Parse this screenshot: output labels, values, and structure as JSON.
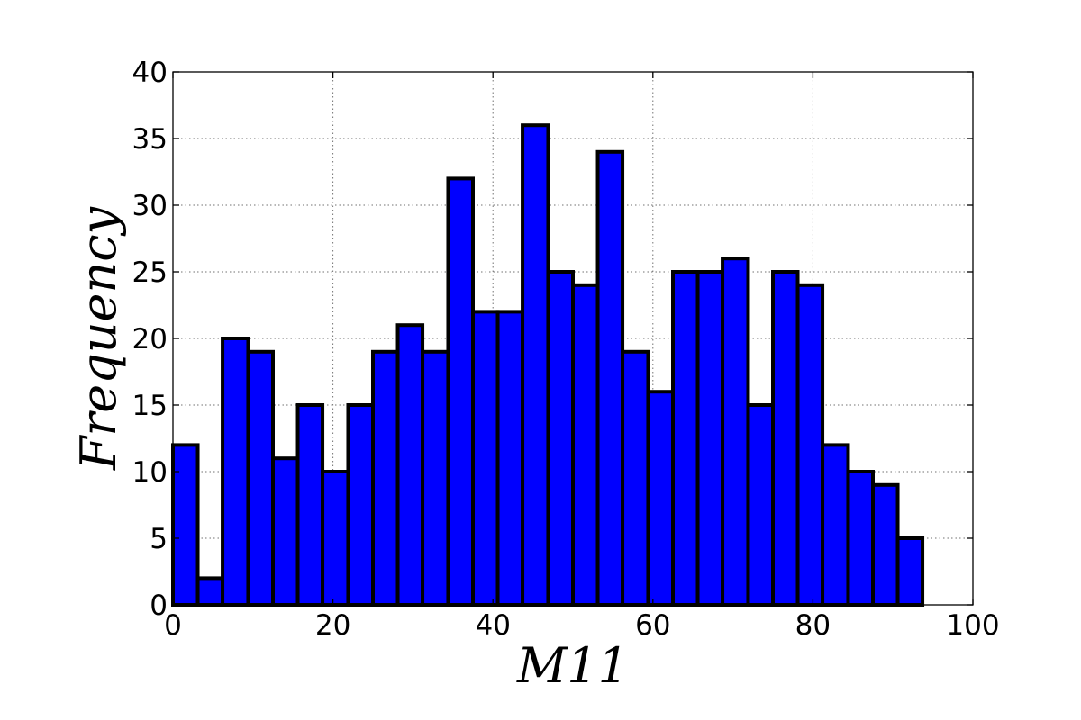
{
  "chart_data": {
    "type": "bar",
    "subtype": "histogram",
    "xlabel": "M11",
    "ylabel": "Frequency",
    "xlim": [
      0,
      100
    ],
    "ylim": [
      0,
      40
    ],
    "x_ticks": [
      0,
      20,
      40,
      60,
      80,
      100
    ],
    "y_ticks": [
      0,
      5,
      10,
      15,
      20,
      25,
      30,
      35,
      40
    ],
    "grid": true,
    "bar_color": "#0000ff",
    "edge_color": "#000000",
    "bins": [
      {
        "start": 0.0,
        "end": 3.1,
        "count": 12
      },
      {
        "start": 3.1,
        "end": 6.2,
        "count": 2
      },
      {
        "start": 6.2,
        "end": 9.4,
        "count": 20
      },
      {
        "start": 9.4,
        "end": 12.5,
        "count": 19
      },
      {
        "start": 12.5,
        "end": 15.6,
        "count": 11
      },
      {
        "start": 15.6,
        "end": 18.7,
        "count": 15
      },
      {
        "start": 18.7,
        "end": 21.9,
        "count": 10
      },
      {
        "start": 21.9,
        "end": 25.0,
        "count": 15
      },
      {
        "start": 25.0,
        "end": 28.1,
        "count": 19
      },
      {
        "start": 28.1,
        "end": 31.2,
        "count": 21
      },
      {
        "start": 31.2,
        "end": 34.4,
        "count": 19
      },
      {
        "start": 34.4,
        "end": 37.5,
        "count": 32
      },
      {
        "start": 37.5,
        "end": 40.6,
        "count": 22
      },
      {
        "start": 40.6,
        "end": 43.7,
        "count": 22
      },
      {
        "start": 43.7,
        "end": 46.9,
        "count": 36
      },
      {
        "start": 46.9,
        "end": 50.0,
        "count": 25
      },
      {
        "start": 50.0,
        "end": 53.1,
        "count": 24
      },
      {
        "start": 53.1,
        "end": 56.2,
        "count": 34
      },
      {
        "start": 56.2,
        "end": 59.4,
        "count": 19
      },
      {
        "start": 59.4,
        "end": 62.5,
        "count": 16
      },
      {
        "start": 62.5,
        "end": 65.6,
        "count": 25
      },
      {
        "start": 65.6,
        "end": 68.7,
        "count": 25
      },
      {
        "start": 68.7,
        "end": 71.9,
        "count": 26
      },
      {
        "start": 71.9,
        "end": 75.0,
        "count": 15
      },
      {
        "start": 75.0,
        "end": 78.1,
        "count": 25
      },
      {
        "start": 78.1,
        "end": 81.2,
        "count": 24
      },
      {
        "start": 81.2,
        "end": 84.4,
        "count": 12
      },
      {
        "start": 84.4,
        "end": 87.5,
        "count": 10
      },
      {
        "start": 87.5,
        "end": 90.6,
        "count": 9
      },
      {
        "start": 90.6,
        "end": 93.7,
        "count": 5
      }
    ]
  }
}
